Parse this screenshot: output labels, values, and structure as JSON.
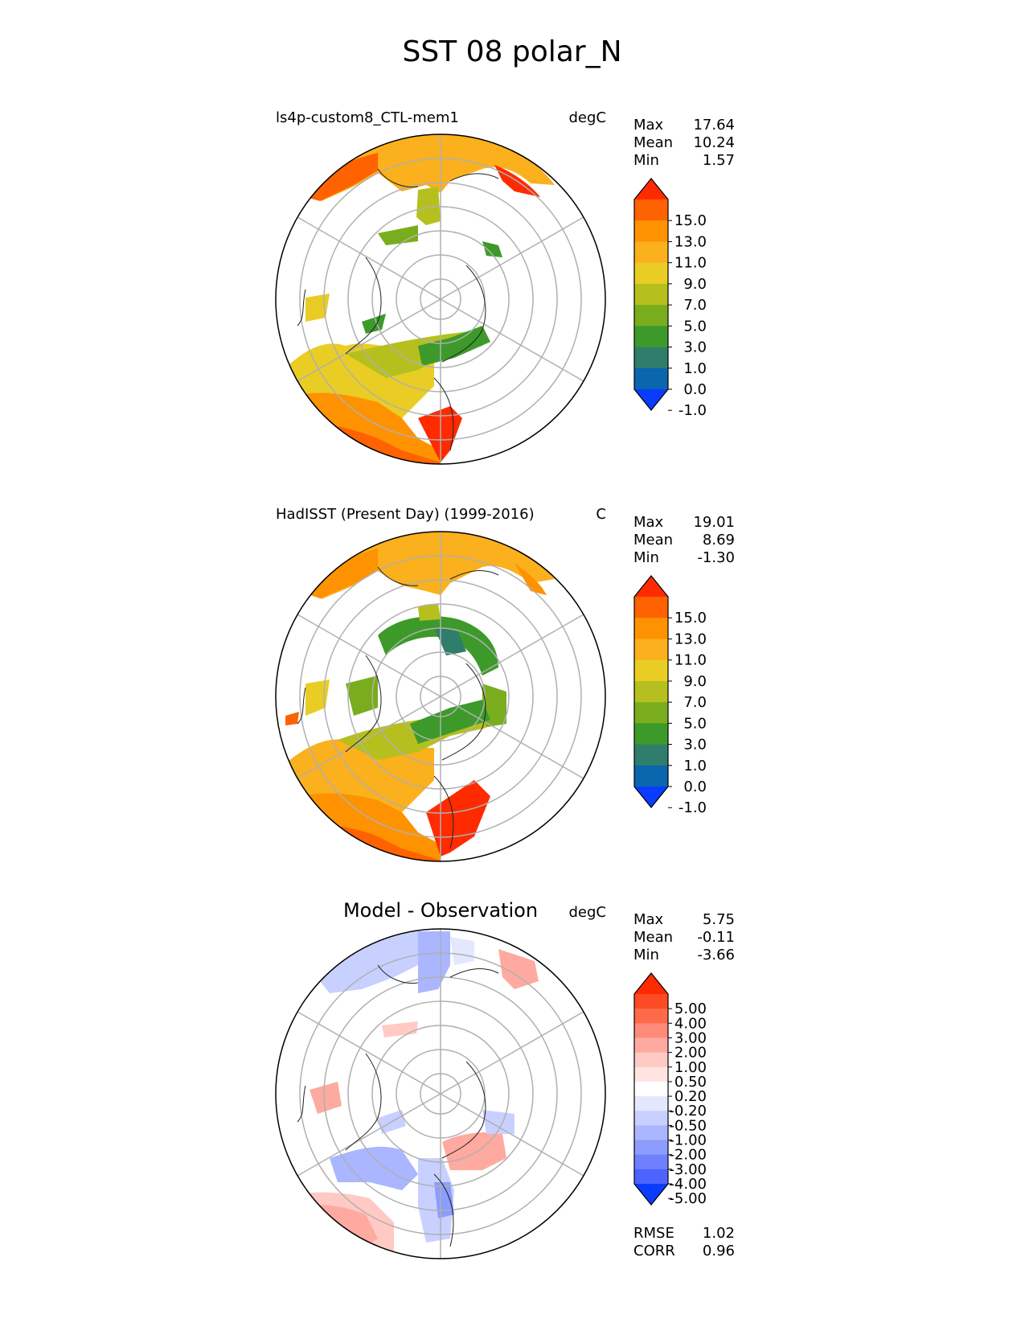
{
  "figure": {
    "title": "SST 08 polar_N"
  },
  "panels": [
    {
      "title": "ls4p-custom8_CTL-mem1",
      "units": "degC",
      "stats": [
        {
          "label": "Max",
          "value": "17.64"
        },
        {
          "label": "Mean",
          "value": "10.24"
        },
        {
          "label": "Min",
          "value": "1.57"
        }
      ],
      "colorbar": {
        "ticks": [
          "15.0",
          "13.0",
          "11.0",
          "9.0",
          "7.0",
          "5.0",
          "3.0",
          "1.0",
          "0.0",
          "-1.0"
        ],
        "colors": [
          "#ff2b00",
          "#ff6200",
          "#ff9200",
          "#fbb01d",
          "#e9cd24",
          "#b5c01e",
          "#7aad1d",
          "#3d9a2a",
          "#2f7e6b",
          "#0a66ad",
          "#0a3cff"
        ]
      }
    },
    {
      "title": "HadISST (Present Day) (1999-2016)",
      "units": "C",
      "stats": [
        {
          "label": "Max",
          "value": "19.01"
        },
        {
          "label": "Mean",
          "value": "8.69"
        },
        {
          "label": "Min",
          "value": "-1.30"
        }
      ],
      "colorbar": {
        "ticks": [
          "15.0",
          "13.0",
          "11.0",
          "9.0",
          "7.0",
          "5.0",
          "3.0",
          "1.0",
          "0.0",
          "-1.0"
        ],
        "colors": [
          "#ff2b00",
          "#ff6200",
          "#ff9200",
          "#fbb01d",
          "#e9cd24",
          "#b5c01e",
          "#7aad1d",
          "#3d9a2a",
          "#2f7e6b",
          "#0a66ad",
          "#0a3cff"
        ]
      }
    },
    {
      "title": "Model - Observation",
      "units": "degC",
      "stats": [
        {
          "label": "Max",
          "value": "5.75"
        },
        {
          "label": "Mean",
          "value": "-0.11"
        },
        {
          "label": "Min",
          "value": "-3.66"
        }
      ],
      "extra_stats": [
        {
          "label": "RMSE",
          "value": "1.02"
        },
        {
          "label": "CORR",
          "value": "0.96"
        }
      ],
      "colorbar": {
        "ticks": [
          "5.00",
          "4.00",
          "3.00",
          "2.00",
          "1.00",
          "0.50",
          "0.20",
          "-0.20",
          "-0.50",
          "-1.00",
          "-2.00",
          "-3.00",
          "-4.00",
          "-5.00"
        ],
        "colors": [
          "#ff2b00",
          "#ff4a26",
          "#ff6a4a",
          "#ff8a78",
          "#ffaaa0",
          "#ffcac4",
          "#ffe4e1",
          "#ffffff",
          "#e4e8ff",
          "#c8d0ff",
          "#aab6ff",
          "#8c9cff",
          "#6f80ff",
          "#4d63ff",
          "#0a3cff"
        ]
      }
    }
  ],
  "chart_data": [
    {
      "type": "heatmap",
      "projection": "north polar stereographic",
      "title": "ls4p-custom8_CTL-mem1",
      "units": "degC",
      "stats": {
        "max": 17.64,
        "mean": 10.24,
        "min": 1.57
      },
      "levels": [
        -1.0,
        0.0,
        1.0,
        3.0,
        5.0,
        7.0,
        9.0,
        11.0,
        13.0,
        15.0
      ],
      "colorbar_extend": "both",
      "grid": true
    },
    {
      "type": "heatmap",
      "projection": "north polar stereographic",
      "title": "HadISST (Present Day) (1999-2016)",
      "units": "C",
      "stats": {
        "max": 19.01,
        "mean": 8.69,
        "min": -1.3
      },
      "levels": [
        -1.0,
        0.0,
        1.0,
        3.0,
        5.0,
        7.0,
        9.0,
        11.0,
        13.0,
        15.0
      ],
      "colorbar_extend": "both",
      "grid": true
    },
    {
      "type": "heatmap",
      "projection": "north polar stereographic",
      "title": "Model - Observation",
      "units": "degC",
      "stats": {
        "max": 5.75,
        "mean": -0.11,
        "min": -3.66,
        "rmse": 1.02,
        "corr": 0.96
      },
      "levels": [
        -5.0,
        -4.0,
        -3.0,
        -2.0,
        -1.0,
        -0.5,
        -0.2,
        0.2,
        0.5,
        1.0,
        2.0,
        3.0,
        4.0,
        5.0
      ],
      "colorbar_extend": "both",
      "grid": true
    }
  ]
}
